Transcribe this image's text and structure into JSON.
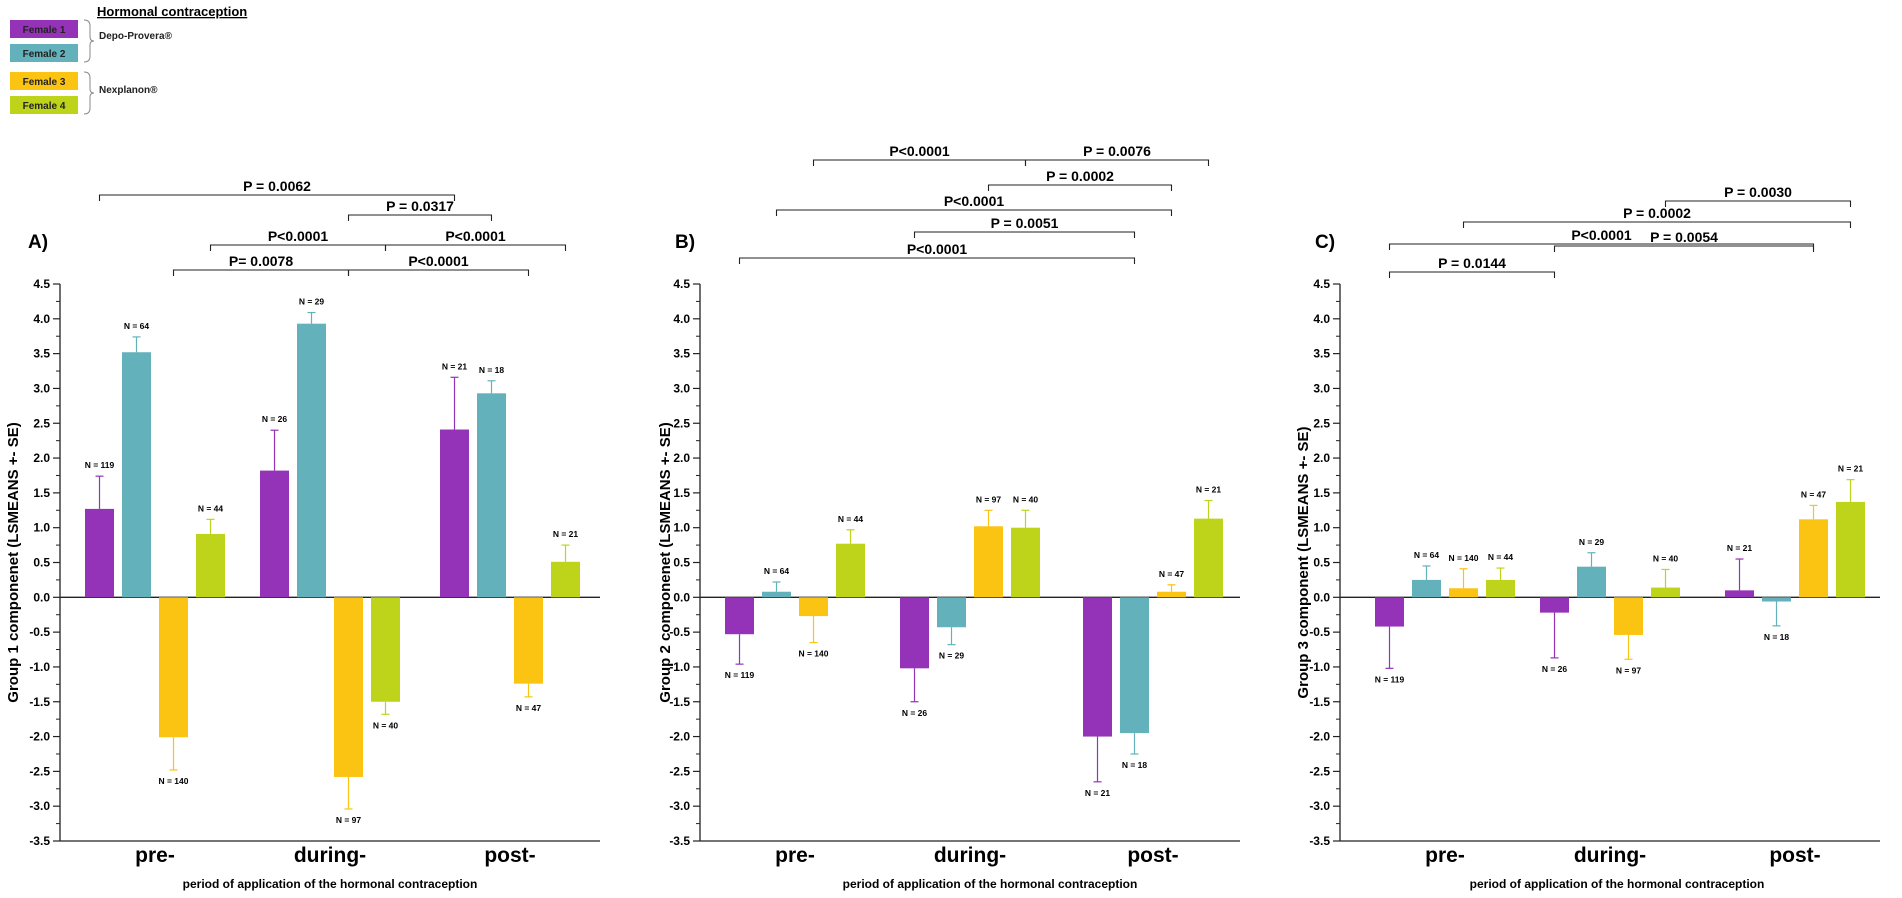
{
  "legend": {
    "title": "Hormonal contraception",
    "entries": [
      {
        "label": "Female 1",
        "color": "#9433b8"
      },
      {
        "label": "Female 2",
        "color": "#63b1bb"
      },
      {
        "label": "Female 3",
        "color": "#fbc312"
      },
      {
        "label": "Female 4",
        "color": "#bdd41a"
      }
    ],
    "groups": [
      {
        "label": "Depo-Provera®",
        "members": [
          0,
          1
        ]
      },
      {
        "label": "Nexplanon®",
        "members": [
          2,
          3
        ]
      }
    ]
  },
  "chart_data": [
    {
      "type": "bar",
      "panel_label": "A)",
      "categories": [
        "pre-",
        "during-",
        "post-"
      ],
      "xlabel": "period of application of the hormonal contraception",
      "ylabel": "Group 1 componenet (LSMEANS +- SE)",
      "ylim": [
        -3.5,
        4.5
      ],
      "yticks": [
        "4.5",
        "4.0",
        "3.5",
        "3.0",
        "2.5",
        "2.0",
        "1.5",
        "1.0",
        "0.5",
        "0.0",
        "-0.5",
        "-1.0",
        "-1.5",
        "-2.0",
        "-2.5",
        "-3.0",
        "-3.5"
      ],
      "series": [
        {
          "name": "Female 1",
          "values": [
            1.27,
            1.82,
            2.41
          ],
          "errors": [
            0.47,
            0.58,
            0.75
          ],
          "n": [
            "N = 119",
            "N = 26",
            "N = 21"
          ]
        },
        {
          "name": "Female 2",
          "values": [
            3.52,
            3.93,
            2.93
          ],
          "errors": [
            0.22,
            0.16,
            0.18
          ],
          "n": [
            "N = 64",
            "N = 29",
            "N = 18"
          ]
        },
        {
          "name": "Female 3",
          "values": [
            -2.01,
            -2.58,
            -1.24
          ],
          "errors": [
            0.47,
            0.46,
            0.19
          ],
          "n": [
            "N = 140",
            "N = 97",
            "N = 47"
          ]
        },
        {
          "name": "Female 4",
          "values": [
            0.91,
            -1.5,
            0.51
          ],
          "errors": [
            0.21,
            0.18,
            0.24
          ],
          "n": [
            "N = 44",
            "N = 40",
            "N = 21"
          ]
        }
      ],
      "comparisons": [
        {
          "label": "P = 0.0062",
          "from": [
            0,
            0
          ],
          "to": [
            2,
            0
          ]
        },
        {
          "label": "P = 0.0317",
          "from": [
            1,
            2
          ],
          "to": [
            2,
            1
          ]
        },
        {
          "label": "P<0.0001",
          "from": [
            0,
            3
          ],
          "to": [
            1,
            3
          ]
        },
        {
          "label": "P<0.0001",
          "from": [
            1,
            3
          ],
          "to": [
            2,
            3
          ]
        },
        {
          "label": "P= 0.0078",
          "from": [
            0,
            2
          ],
          "to": [
            1,
            2
          ]
        },
        {
          "label": "P<0.0001",
          "from": [
            1,
            2
          ],
          "to": [
            2,
            2
          ]
        }
      ]
    },
    {
      "type": "bar",
      "panel_label": "B)",
      "categories": [
        "pre-",
        "during-",
        "post-"
      ],
      "xlabel": "period of application of the hormonal contraception",
      "ylabel": "Group 2 componenet (LSMEANS +- SE)",
      "ylim": [
        -3.5,
        4.5
      ],
      "yticks": [
        "4.5",
        "4.0",
        "3.5",
        "3.0",
        "2.5",
        "2.0",
        "1.5",
        "1.0",
        "0.5",
        "0.0",
        "-0.5",
        "-1.0",
        "-1.5",
        "-2.0",
        "-2.5",
        "-3.0",
        "-3.5"
      ],
      "series": [
        {
          "name": "Female 1",
          "values": [
            -0.53,
            -1.02,
            -2.0
          ],
          "errors": [
            0.43,
            0.48,
            0.65
          ],
          "n": [
            "N = 119",
            "N = 26",
            "N = 21"
          ]
        },
        {
          "name": "Female 2",
          "values": [
            0.08,
            -0.43,
            -1.95
          ],
          "errors": [
            0.14,
            0.25,
            0.3
          ],
          "n": [
            "N = 64",
            "N = 29",
            "N = 18"
          ]
        },
        {
          "name": "Female 3",
          "values": [
            -0.27,
            1.02,
            0.08
          ],
          "errors": [
            0.38,
            0.23,
            0.1
          ],
          "n": [
            "N = 140",
            "N = 97",
            "N = 47"
          ]
        },
        {
          "name": "Female 4",
          "values": [
            0.77,
            1.0,
            1.13
          ],
          "errors": [
            0.2,
            0.25,
            0.26
          ],
          "n": [
            "N = 44",
            "N = 40",
            "N = 21"
          ]
        }
      ],
      "comparisons": [
        {
          "label": "P<0.0001",
          "from": [
            0,
            2
          ],
          "to": [
            1,
            3
          ]
        },
        {
          "label": "P = 0.0076",
          "from": [
            1,
            3
          ],
          "to": [
            2,
            3
          ]
        },
        {
          "label": "P = 0.0002",
          "from": [
            1,
            2
          ],
          "to": [
            2,
            2
          ]
        },
        {
          "label": "P<0.0001",
          "from": [
            0,
            1
          ],
          "to": [
            2,
            2
          ]
        },
        {
          "label": "P = 0.0051",
          "from": [
            1,
            0
          ],
          "to": [
            2,
            1
          ]
        },
        {
          "label": "P<0.0001",
          "from": [
            0,
            0
          ],
          "to": [
            2,
            1
          ]
        }
      ]
    },
    {
      "type": "bar",
      "panel_label": "C)",
      "categories": [
        "pre-",
        "during-",
        "post-"
      ],
      "xlabel": "period of application of the hormonal contraception",
      "ylabel": "Group 3 component (LSMEANS +- SE)",
      "ylim": [
        -3.5,
        4.5
      ],
      "yticks": [
        "4.5",
        "4.0",
        "3.5",
        "3.0",
        "2.5",
        "2.0",
        "1.5",
        "1.0",
        "0.5",
        "0.0",
        "-0.5",
        "-1.0",
        "-1.5",
        "-2.0",
        "-2.5",
        "-3.0",
        "-3.5"
      ],
      "series": [
        {
          "name": "Female 1",
          "values": [
            -0.42,
            -0.22,
            0.1
          ],
          "errors": [
            0.6,
            0.65,
            0.45
          ],
          "n": [
            "N = 119",
            "N = 26",
            "N = 21"
          ]
        },
        {
          "name": "Female 2",
          "values": [
            0.25,
            0.44,
            -0.06
          ],
          "errors": [
            0.2,
            0.2,
            0.35
          ],
          "n": [
            "N = 64",
            "N = 29",
            "N = 18"
          ]
        },
        {
          "name": "Female 3",
          "values": [
            0.13,
            -0.54,
            1.12
          ],
          "errors": [
            0.28,
            0.35,
            0.2
          ],
          "n": [
            "N = 140",
            "N = 97",
            "N = 47"
          ]
        },
        {
          "name": "Female 4",
          "values": [
            0.25,
            0.14,
            1.37
          ],
          "errors": [
            0.17,
            0.26,
            0.32
          ],
          "n": [
            "N = 44",
            "N = 40",
            "N = 21"
          ]
        }
      ],
      "comparisons": [
        {
          "label": "P = 0.0030",
          "from": [
            1,
            3
          ],
          "to": [
            2,
            3
          ]
        },
        {
          "label": "P = 0.0002",
          "from": [
            0,
            2
          ],
          "to": [
            2,
            3
          ]
        },
        {
          "label": "P<0.0001",
          "from": [
            0,
            0
          ],
          "to": [
            2,
            2
          ]
        },
        {
          "label": "P = 0.0054",
          "from": [
            1,
            0
          ],
          "to": [
            2,
            2
          ]
        },
        {
          "label": "P = 0.0144",
          "from": [
            0,
            0
          ],
          "to": [
            1,
            0
          ]
        }
      ]
    }
  ]
}
